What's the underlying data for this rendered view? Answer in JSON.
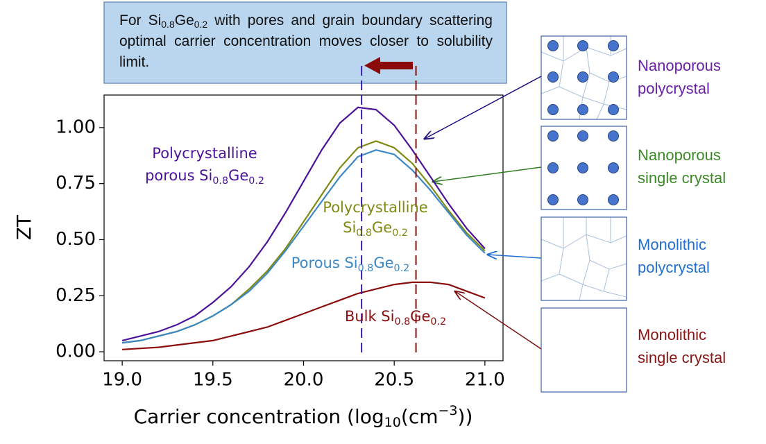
{
  "chart_data": {
    "type": "line",
    "annotation": [
      "For Si",
      "0.8",
      "Ge",
      "0.2",
      " with pores and grain boundary scattering optimal carrier concentration moves closer to solubility limit."
    ],
    "x_label": [
      "Carrier concentration (log",
      "10",
      "(cm",
      "−3",
      "))"
    ],
    "y_label": "ZT",
    "x": [
      19.0,
      19.1,
      19.2,
      19.3,
      19.4,
      19.5,
      19.6,
      19.7,
      19.8,
      19.9,
      20.0,
      20.1,
      20.2,
      20.3,
      20.4,
      20.5,
      20.6,
      20.7,
      20.8,
      20.9,
      21.0
    ],
    "xlim": [
      18.9,
      21.1
    ],
    "ylim": [
      -0.04,
      1.145
    ],
    "xticks": [
      {
        "value": 19,
        "label": "19.0"
      },
      19.5,
      {
        "value": 20,
        "label": "20.0"
      },
      20.5,
      {
        "value": 21,
        "label": "21.0"
      }
    ],
    "yticks": [
      {
        "value": 0,
        "label": "0.00"
      },
      0.25,
      {
        "value": 0.5,
        "label": "0.50"
      },
      0.75,
      {
        "value": 1,
        "label": "1.00"
      }
    ],
    "series": [
      {
        "label": [
          [
            "Polycrystalline"
          ],
          [
            "porous Si",
            "0.8",
            "Ge",
            "0.2"
          ]
        ],
        "color": "#4b1299",
        "values": [
          0.05,
          0.07,
          0.09,
          0.12,
          0.16,
          0.22,
          0.29,
          0.38,
          0.49,
          0.62,
          0.76,
          0.9,
          1.02,
          1.09,
          1.08,
          1.01,
          0.9,
          0.78,
          0.66,
          0.55,
          0.46
        ]
      },
      {
        "label": [
          [
            "Polycrystalline"
          ],
          [
            "Si",
            "0.8",
            "Ge",
            "0.2"
          ]
        ],
        "color": "#7f8a12",
        "values": [
          0.04,
          0.05,
          0.07,
          0.09,
          0.12,
          0.16,
          0.21,
          0.28,
          0.36,
          0.46,
          0.58,
          0.7,
          0.82,
          0.91,
          0.94,
          0.91,
          0.84,
          0.74,
          0.63,
          0.53,
          0.45
        ]
      },
      {
        "label": [
          [
            "Porous Si",
            "0.8",
            "Ge",
            "0.2"
          ]
        ],
        "color": "#3b88c4",
        "values": [
          0.04,
          0.05,
          0.07,
          0.09,
          0.12,
          0.16,
          0.21,
          0.27,
          0.35,
          0.45,
          0.56,
          0.67,
          0.78,
          0.87,
          0.9,
          0.88,
          0.81,
          0.72,
          0.62,
          0.52,
          0.44
        ]
      },
      {
        "label": [
          [
            "Bulk Si",
            "0.8",
            "Ge",
            "0.2"
          ]
        ],
        "color": "#8b0d0d",
        "values": [
          0.01,
          0.015,
          0.02,
          0.03,
          0.04,
          0.05,
          0.07,
          0.09,
          0.11,
          0.14,
          0.17,
          0.2,
          0.23,
          0.26,
          0.28,
          0.3,
          0.31,
          0.31,
          0.3,
          0.27,
          0.24
        ]
      }
    ],
    "vlines": [
      {
        "x": 20.32,
        "color": "#3a1cb0"
      },
      {
        "x": 20.62,
        "color": "#8b0d0d"
      }
    ],
    "panels": [
      {
        "label": [
          "Nanoporous",
          "polycrystal"
        ],
        "color": "#6a1fa8"
      },
      {
        "label": [
          "Nanoporous",
          "single crystal"
        ],
        "color": "#3a8a25"
      },
      {
        "label": [
          "Monolithic",
          "polycrystal"
        ],
        "color": "#1f6fd0"
      },
      {
        "label": [
          "Monolithic",
          "single crystal"
        ],
        "color": "#8b1414"
      }
    ]
  }
}
